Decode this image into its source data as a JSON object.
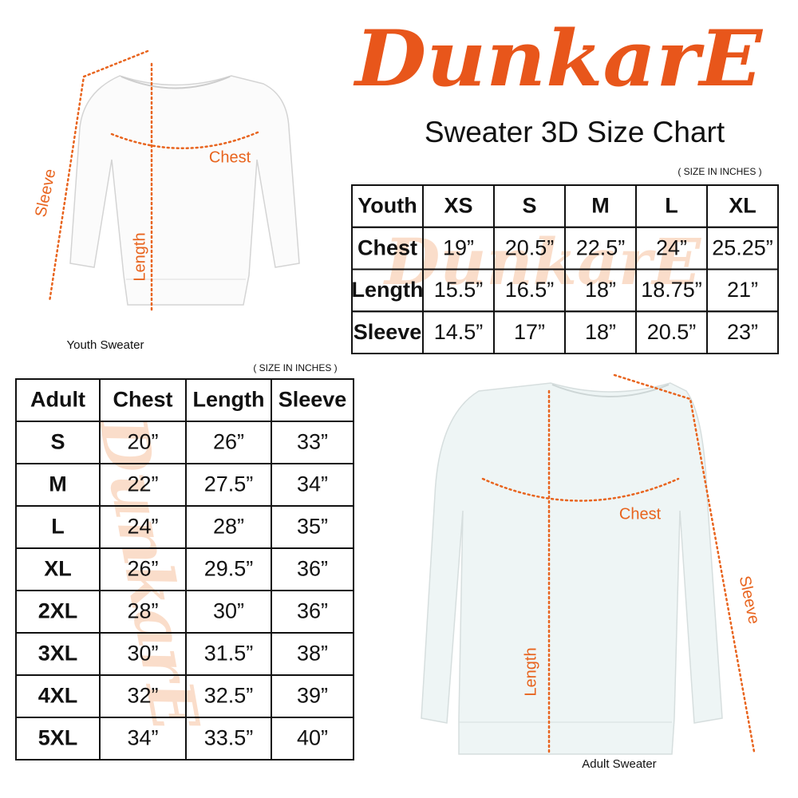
{
  "brand": "DunkarE",
  "title": "Sweater 3D Size Chart",
  "youth": {
    "unit_note": "( SIZE IN INCHES )",
    "caption": "Youth Sweater",
    "diagram_labels": {
      "chest": "Chest",
      "length": "Length",
      "sleeve": "Sleeve"
    },
    "header": [
      "Youth",
      "XS",
      "S",
      "M",
      "L",
      "XL"
    ],
    "rows": [
      [
        "Chest",
        "19”",
        "20.5”",
        "22.5”",
        "24”",
        "25.25”"
      ],
      [
        "Length",
        "15.5”",
        "16.5”",
        "18”",
        "18.75”",
        "21”"
      ],
      [
        "Sleeve",
        "14.5”",
        "17”",
        "18”",
        "20.5”",
        "23”"
      ]
    ]
  },
  "adult": {
    "unit_note": "( SIZE IN INCHES )",
    "caption": "Adult Sweater",
    "diagram_labels": {
      "chest": "Chest",
      "length": "Length",
      "sleeve": "Sleeve"
    },
    "header": [
      "Adult",
      "Chest",
      "Length",
      "Sleeve"
    ],
    "rows": [
      [
        "S",
        "20”",
        "26”",
        "33”"
      ],
      [
        "M",
        "22”",
        "27.5”",
        "34”"
      ],
      [
        "L",
        "24”",
        "28”",
        "35”"
      ],
      [
        "XL",
        "26”",
        "29.5”",
        "36”"
      ],
      [
        "2XL",
        "28”",
        "30”",
        "36”"
      ],
      [
        "3XL",
        "30”",
        "31.5”",
        "38”"
      ],
      [
        "4XL",
        "32”",
        "32.5”",
        "39”"
      ],
      [
        "5XL",
        "34”",
        "33.5”",
        "40”"
      ]
    ]
  }
}
